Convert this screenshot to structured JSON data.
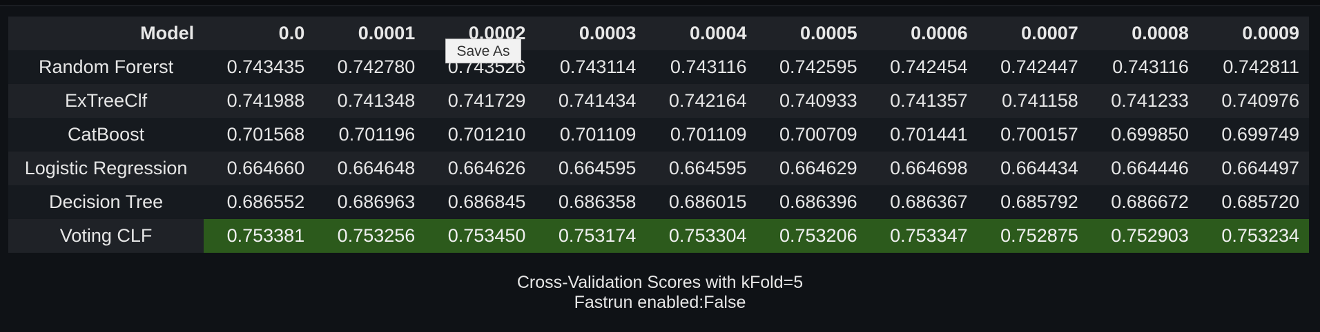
{
  "table": {
    "header_model": "Model",
    "columns": [
      "0.0",
      "0.0001",
      "0.0002",
      "0.0003",
      "0.0004",
      "0.0005",
      "0.0006",
      "0.0007",
      "0.0008",
      "0.0009"
    ],
    "rows": [
      {
        "model": "Random Forerst",
        "values": [
          "0.743435",
          "0.742780",
          "0.743526",
          "0.743114",
          "0.743116",
          "0.742595",
          "0.742454",
          "0.742447",
          "0.743116",
          "0.742811"
        ]
      },
      {
        "model": "ExTreeClf",
        "values": [
          "0.741988",
          "0.741348",
          "0.741729",
          "0.741434",
          "0.742164",
          "0.740933",
          "0.741357",
          "0.741158",
          "0.741233",
          "0.740976"
        ]
      },
      {
        "model": "CatBoost",
        "values": [
          "0.701568",
          "0.701196",
          "0.701210",
          "0.701109",
          "0.701109",
          "0.700709",
          "0.701441",
          "0.700157",
          "0.699850",
          "0.699749"
        ]
      },
      {
        "model": "Logistic Regression",
        "values": [
          "0.664660",
          "0.664648",
          "0.664626",
          "0.664595",
          "0.664595",
          "0.664629",
          "0.664698",
          "0.664434",
          "0.664446",
          "0.664497"
        ]
      },
      {
        "model": "Decision Tree",
        "values": [
          "0.686552",
          "0.686963",
          "0.686845",
          "0.686358",
          "0.686015",
          "0.686396",
          "0.686367",
          "0.685792",
          "0.686672",
          "0.685720"
        ]
      },
      {
        "model": "Voting CLF",
        "values": [
          "0.753381",
          "0.753256",
          "0.753450",
          "0.753174",
          "0.753304",
          "0.753206",
          "0.753347",
          "0.752875",
          "0.752903",
          "0.753234"
        ],
        "highlighted": true
      }
    ]
  },
  "tooltip": {
    "label": "Save As"
  },
  "caption": {
    "line1": "Cross-Validation Scores with kFold=5",
    "line2": "Fastrun enabled:False"
  },
  "colors": {
    "background": "#0f1216",
    "highlight": "#2c5a1c"
  }
}
